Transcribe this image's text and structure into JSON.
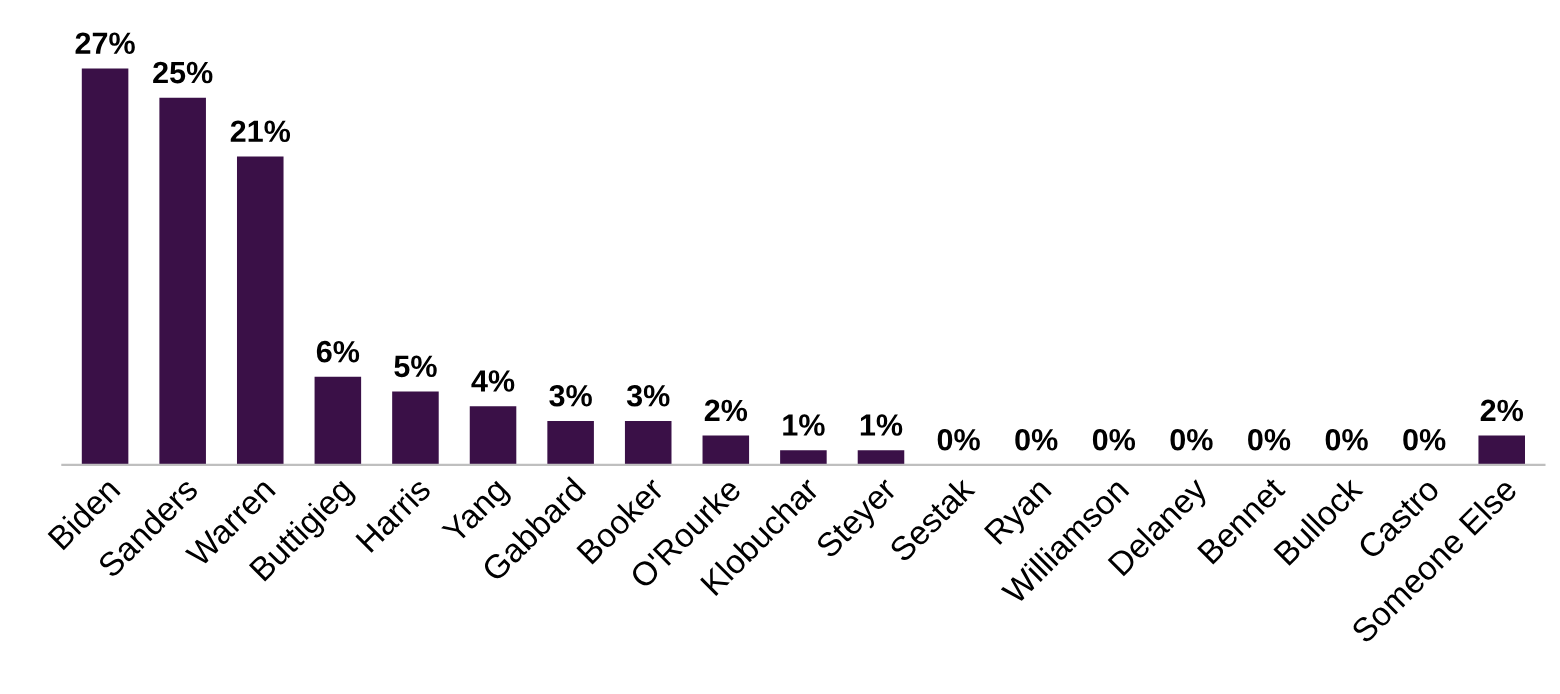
{
  "chart_data": {
    "type": "bar",
    "categories": [
      "Biden",
      "Sanders",
      "Warren",
      "Buttigieg",
      "Harris",
      "Yang",
      "Gabbard",
      "Booker",
      "O'Rourke",
      "Klobuchar",
      "Steyer",
      "Sestak",
      "Ryan",
      "Williamson",
      "Delaney",
      "Bennet",
      "Bullock",
      "Castro",
      "Someone Else"
    ],
    "values": [
      27,
      25,
      21,
      6,
      5,
      4,
      3,
      3,
      2,
      1,
      1,
      0,
      0,
      0,
      0,
      0,
      0,
      0,
      2
    ],
    "value_labels": [
      "27%",
      "25%",
      "21%",
      "6%",
      "5%",
      "4%",
      "3%",
      "3%",
      "2%",
      "1%",
      "1%",
      "0%",
      "0%",
      "0%",
      "0%",
      "0%",
      "0%",
      "0%",
      "2%"
    ],
    "color": "#3a1047",
    "tick_labels": "x",
    "grid": false,
    "legend": false
  }
}
